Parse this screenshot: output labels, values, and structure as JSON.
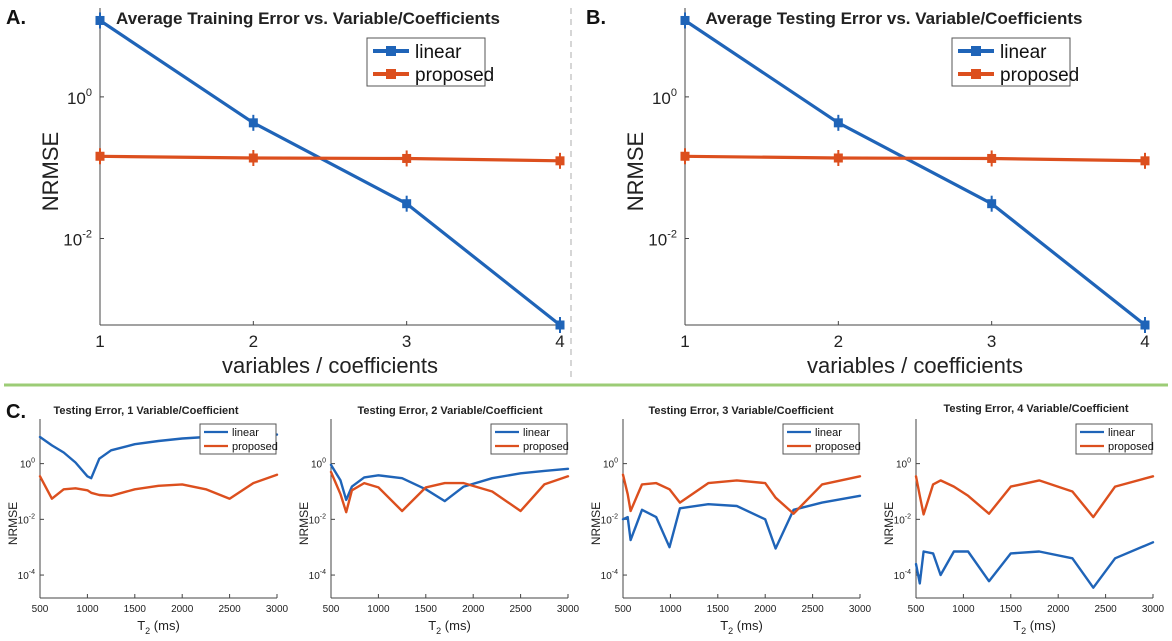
{
  "panel_letters": {
    "a": "A.",
    "b": "B.",
    "c": "C."
  },
  "colors": {
    "linear": "#1f64b8",
    "proposed": "#dc4f1e",
    "divider_h": "#9ccc76",
    "divider_v": "#c8c8c8",
    "axis": "#444444"
  },
  "chart_data": [
    {
      "type": "line",
      "title": "Average Training Error vs. Variable/Coefficients",
      "xlabel": "variables / coefficients",
      "ylabel": "NRMSE",
      "yscale": "log",
      "xlim": [
        1,
        4
      ],
      "ylim": [
        0.0006,
        18
      ],
      "x_ticks": [
        1,
        2,
        3,
        4
      ],
      "x_tick_labels": [
        "1",
        "2",
        "3",
        "4"
      ],
      "y_ticks": [
        1,
        0.01
      ],
      "y_tick_bases": [
        "10",
        "10"
      ],
      "y_tick_exps": [
        "0",
        "-2"
      ],
      "legend_position": "top-right",
      "x": [
        1,
        2,
        3,
        4
      ],
      "series": [
        {
          "name": "linear",
          "values": [
            12,
            0.43,
            0.031,
            0.0006
          ]
        },
        {
          "name": "proposed",
          "values": [
            0.145,
            0.137,
            0.135,
            0.125
          ]
        }
      ]
    },
    {
      "type": "line",
      "title": "Average Testing Error vs. Variable/Coefficients",
      "xlabel": "variables / coefficients",
      "ylabel": "NRMSE",
      "yscale": "log",
      "xlim": [
        1,
        4
      ],
      "ylim": [
        0.0006,
        18
      ],
      "x_ticks": [
        1,
        2,
        3,
        4
      ],
      "x_tick_labels": [
        "1",
        "2",
        "3",
        "4"
      ],
      "y_ticks": [
        1,
        0.01
      ],
      "y_tick_bases": [
        "10",
        "10"
      ],
      "y_tick_exps": [
        "0",
        "-2"
      ],
      "legend_position": "top-right",
      "x": [
        1,
        2,
        3,
        4
      ],
      "series": [
        {
          "name": "linear",
          "values": [
            12,
            0.43,
            0.031,
            0.0006
          ]
        },
        {
          "name": "proposed",
          "values": [
            0.145,
            0.137,
            0.135,
            0.125
          ]
        }
      ]
    },
    {
      "type": "line",
      "title": "Testing Error, 1 Variable/Coefficient",
      "xlabel": "T2 (ms)",
      "xlabel_main": "T",
      "xlabel_sub": "2",
      "xlabel_rest": " (ms)",
      "ylabel": "NRMSE",
      "yscale": "log",
      "xlim": [
        500,
        3000
      ],
      "ylim": [
        1.5e-05,
        40
      ],
      "x_ticks": [
        500,
        1000,
        1500,
        2000,
        2500,
        3000
      ],
      "x_tick_labels": [
        "500",
        "1000",
        "1500",
        "2000",
        "2500",
        "3000"
      ],
      "y_ticks": [
        1,
        0.01,
        0.0001
      ],
      "y_tick_bases": [
        "10",
        "10",
        "10"
      ],
      "y_tick_exps": [
        "0",
        "-2",
        "-4"
      ],
      "legend_position": "top-right",
      "x": [
        500,
        625,
        750,
        875,
        1000,
        1040,
        1125,
        1250,
        1500,
        1750,
        2000,
        2250,
        2500,
        2750,
        3000
      ],
      "series": [
        {
          "name": "linear",
          "values": [
            9,
            4.5,
            2.5,
            1.1,
            0.35,
            0.3,
            1.5,
            3,
            5,
            6.5,
            8,
            9,
            10,
            10.5,
            11
          ]
        },
        {
          "name": "proposed",
          "values": [
            0.35,
            0.055,
            0.12,
            0.13,
            0.11,
            0.09,
            0.075,
            0.07,
            0.12,
            0.16,
            0.18,
            0.12,
            0.055,
            0.2,
            0.4
          ]
        }
      ]
    },
    {
      "type": "line",
      "title": "Testing Error, 2 Variable/Coefficient",
      "xlabel": "T2 (ms)",
      "xlabel_main": "T",
      "xlabel_sub": "2",
      "xlabel_rest": " (ms)",
      "ylabel": "NRMSE",
      "yscale": "log",
      "xlim": [
        500,
        3000
      ],
      "ylim": [
        1.5e-05,
        40
      ],
      "x_ticks": [
        500,
        1000,
        1500,
        2000,
        2500,
        3000
      ],
      "x_tick_labels": [
        "500",
        "1000",
        "1500",
        "2000",
        "2500",
        "3000"
      ],
      "y_ticks": [
        1,
        0.01,
        0.0001
      ],
      "y_tick_bases": [
        "10",
        "10",
        "10"
      ],
      "y_tick_exps": [
        "0",
        "-2",
        "-4"
      ],
      "legend_position": "top-right",
      "x": [
        500,
        600,
        660,
        720,
        850,
        1000,
        1250,
        1500,
        1700,
        1900,
        2200,
        2500,
        2750,
        3000
      ],
      "series": [
        {
          "name": "linear",
          "values": [
            0.9,
            0.25,
            0.05,
            0.15,
            0.32,
            0.38,
            0.3,
            0.12,
            0.045,
            0.15,
            0.3,
            0.45,
            0.55,
            0.65
          ]
        },
        {
          "name": "proposed",
          "values": [
            0.5,
            0.08,
            0.018,
            0.11,
            0.2,
            0.14,
            0.02,
            0.14,
            0.2,
            0.2,
            0.1,
            0.02,
            0.18,
            0.35
          ]
        }
      ]
    },
    {
      "type": "line",
      "title": "Testing Error, 3 Variable/Coefficient",
      "xlabel": "T2 (ms)",
      "xlabel_main": "T",
      "xlabel_sub": "2",
      "xlabel_rest": " (ms)",
      "ylabel": "NRMSE",
      "yscale": "log",
      "xlim": [
        500,
        3000
      ],
      "ylim": [
        1.5e-05,
        40
      ],
      "x_ticks": [
        500,
        1000,
        1500,
        2000,
        2500,
        3000
      ],
      "x_tick_labels": [
        "500",
        "1000",
        "1500",
        "2000",
        "2500",
        "3000"
      ],
      "y_ticks": [
        1,
        0.01,
        0.0001
      ],
      "y_tick_bases": [
        "10",
        "10",
        "10"
      ],
      "y_tick_exps": [
        "0",
        "-2",
        "-4"
      ],
      "legend_position": "top-right",
      "x": [
        500,
        550,
        580,
        700,
        850,
        990,
        1100,
        1400,
        1700,
        2000,
        2110,
        2300,
        2600,
        3000
      ],
      "series": [
        {
          "name": "linear",
          "values": [
            0.01,
            0.012,
            0.0018,
            0.022,
            0.012,
            0.001,
            0.025,
            0.035,
            0.03,
            0.01,
            0.0009,
            0.022,
            0.04,
            0.07
          ]
        },
        {
          "name": "proposed",
          "values": [
            0.4,
            0.08,
            0.02,
            0.18,
            0.2,
            0.12,
            0.04,
            0.2,
            0.25,
            0.2,
            0.06,
            0.016,
            0.18,
            0.35
          ]
        }
      ]
    },
    {
      "type": "line",
      "title": "Testing Error, 4 Variable/Coefficient",
      "xlabel": "T2 (ms)",
      "xlabel_main": "T",
      "xlabel_sub": "2",
      "xlabel_rest": " (ms)",
      "ylabel": "NRMSE",
      "yscale": "log",
      "xlim": [
        500,
        3000
      ],
      "ylim": [
        1.5e-05,
        40
      ],
      "x_ticks": [
        500,
        1000,
        1500,
        2000,
        2500,
        3000
      ],
      "x_tick_labels": [
        "500",
        "1000",
        "1500",
        "2000",
        "2500",
        "3000"
      ],
      "y_ticks": [
        1,
        0.01,
        0.0001
      ],
      "y_tick_bases": [
        "10",
        "10",
        "10"
      ],
      "y_tick_exps": [
        "0",
        "-2",
        "-4"
      ],
      "legend_position": "top-right",
      "x": [
        500,
        540,
        580,
        680,
        760,
        900,
        1050,
        1270,
        1500,
        1800,
        2150,
        2370,
        2600,
        3000
      ],
      "series": [
        {
          "name": "linear",
          "values": [
            0.00025,
            5e-05,
            0.0007,
            0.0006,
            0.0001,
            0.0007,
            0.0007,
            6e-05,
            0.0006,
            0.0007,
            0.0004,
            3.5e-05,
            0.0004,
            0.0015
          ]
        },
        {
          "name": "proposed",
          "values": [
            0.35,
            0.07,
            0.015,
            0.18,
            0.25,
            0.15,
            0.07,
            0.016,
            0.15,
            0.25,
            0.1,
            0.012,
            0.15,
            0.35
          ]
        }
      ]
    }
  ]
}
